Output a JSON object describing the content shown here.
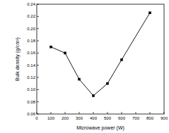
{
  "chart_data": {
    "type": "line",
    "x_label": "Microwave power (W)",
    "y_label": "Bulk density (g/cm³)",
    "x": [
      100,
      200,
      300,
      400,
      500,
      600,
      800
    ],
    "values": [
      0.17,
      0.16,
      0.117,
      0.09,
      0.11,
      0.149,
      0.226
    ],
    "color": "#000000",
    "marker": "square",
    "line_style": "solid",
    "xlim": [
      0,
      900
    ],
    "xticks": [
      0,
      100,
      200,
      300,
      400,
      500,
      600,
      700,
      800,
      900
    ],
    "ylim": [
      0.06,
      0.24
    ],
    "yticks": [
      0.06,
      0.08,
      {
        "value": 0.1,
        "label": "0.10"
      },
      0.12,
      0.14,
      0.16,
      0.18,
      {
        "value": 0.2,
        "label": "0.20"
      },
      0.22,
      0.24
    ],
    "grid": false
  }
}
